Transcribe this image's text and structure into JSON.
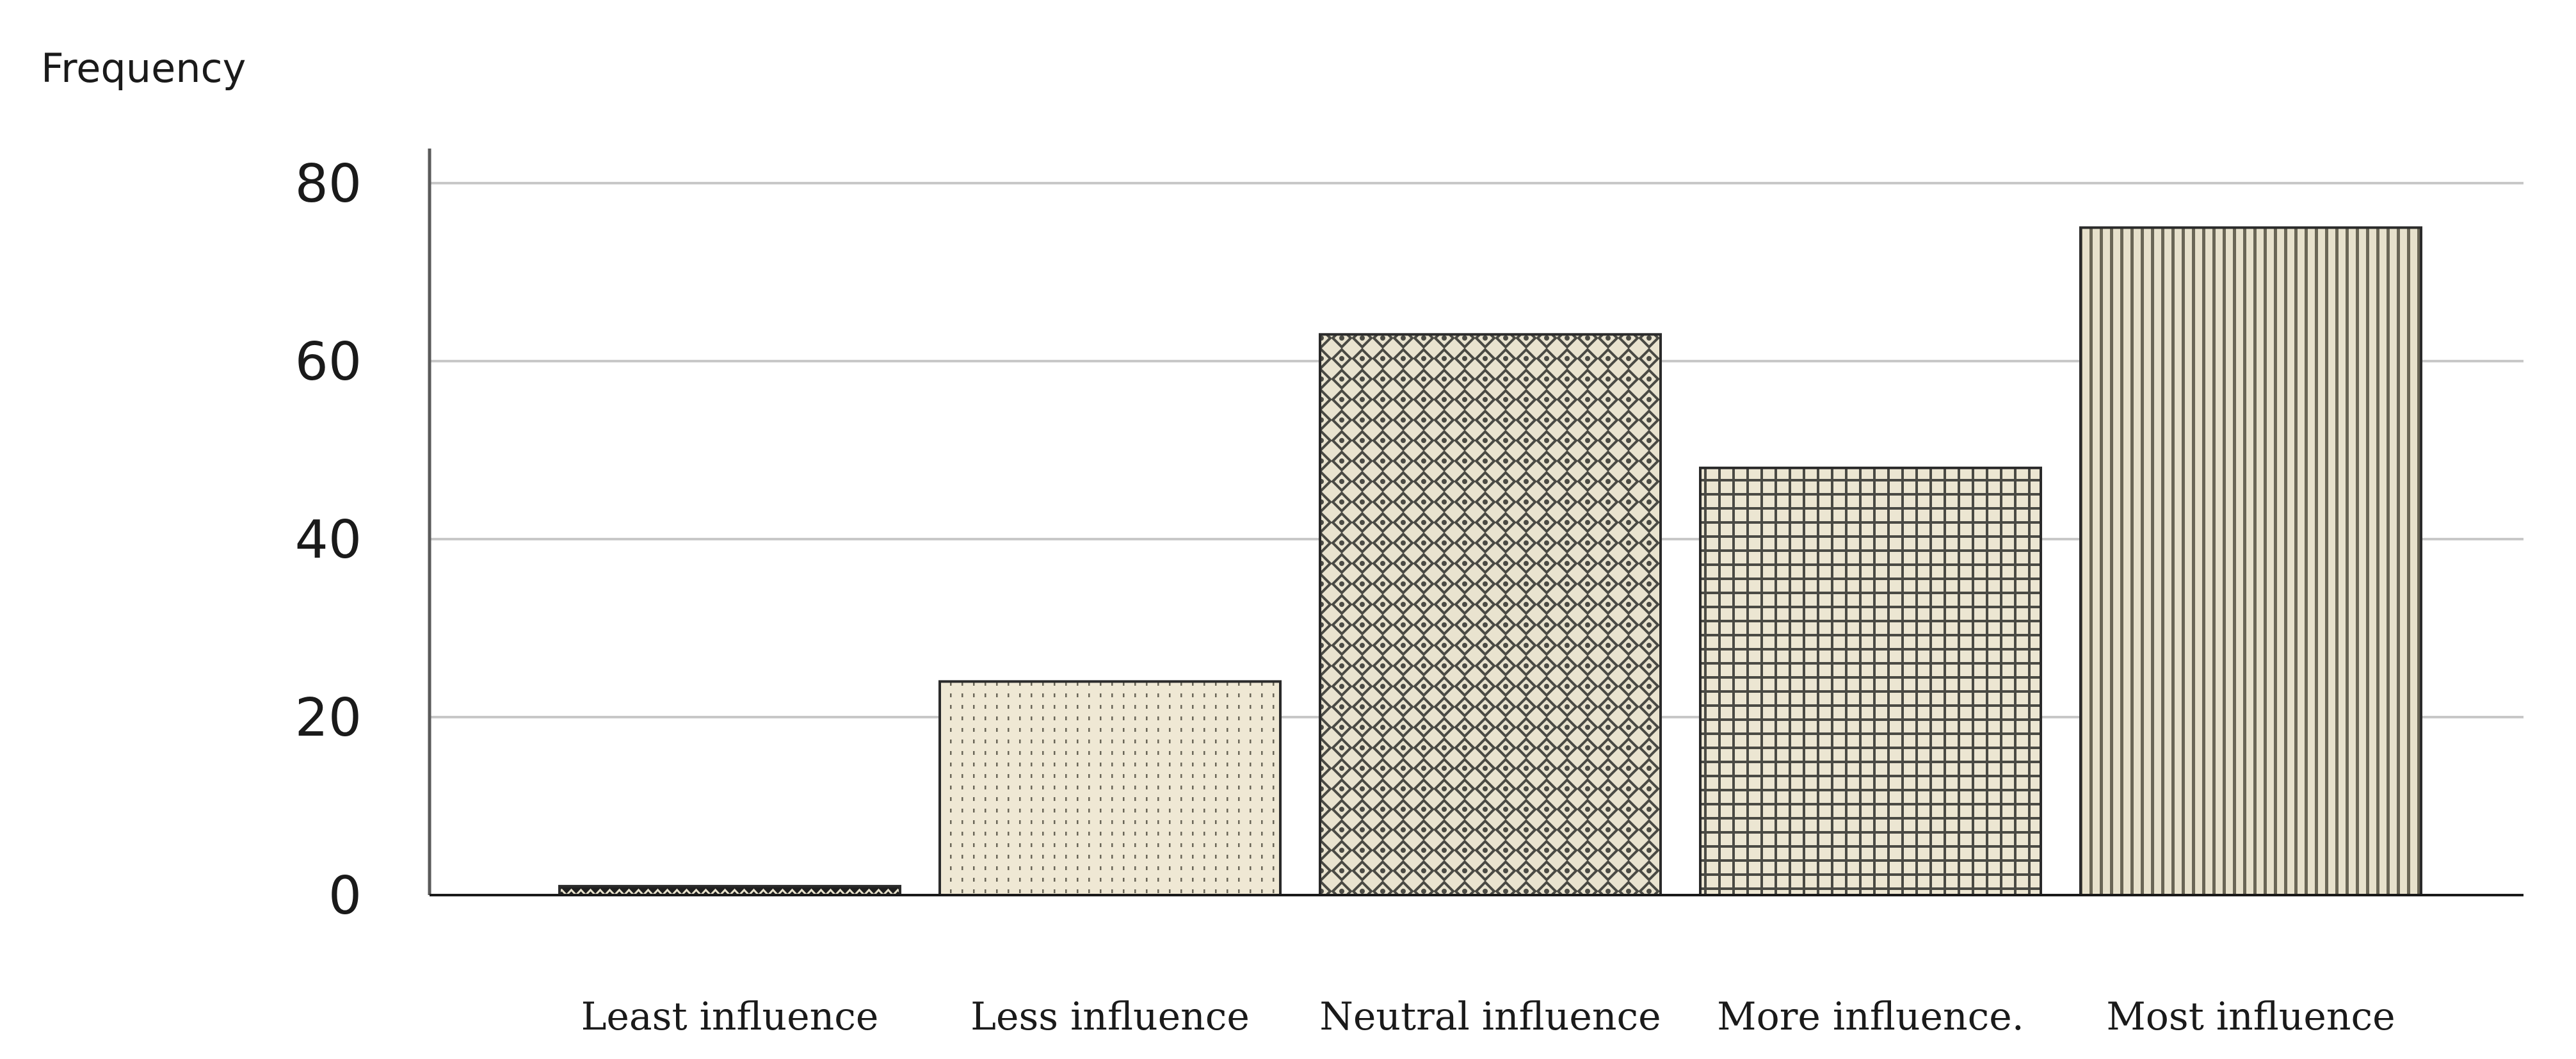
{
  "chart_data": {
    "type": "bar",
    "title": "",
    "xlabel": "",
    "ylabel": "Frequency",
    "categories": [
      "Least influence",
      "Less influence",
      "Neutral influence",
      "More influence.",
      "Most influence"
    ],
    "values": [
      1,
      24,
      63,
      48,
      75
    ],
    "ylim": [
      0,
      80
    ],
    "yticks": [
      0,
      20,
      40,
      60,
      80
    ],
    "grid": true,
    "colors": {
      "bar_fill": [
        "#1f1f1f",
        "#efe8d4",
        "#e9e3cf",
        "#ece6d2",
        "#e7e1cc"
      ],
      "pattern_ink": "#4a4a44",
      "grid": "#c8c8c8",
      "axis": "#5a5a5a"
    },
    "patterns": [
      "zigzag",
      "dotted-vertical",
      "diamond-lattice",
      "grid",
      "vertical-stripes"
    ]
  }
}
